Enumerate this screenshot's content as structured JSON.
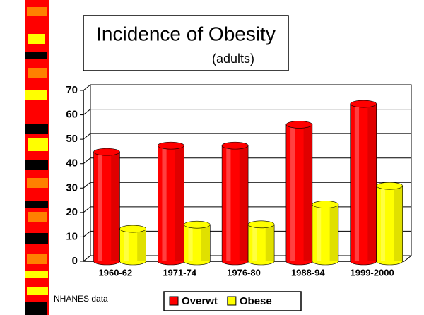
{
  "chart_data": {
    "type": "bar",
    "title": "Incidence of Obesity",
    "subtitle": "(adults)",
    "annotation": "NHANES data",
    "categories": [
      "1960-62",
      "1971-74",
      "1976-80",
      "1988-94",
      "1999-2000"
    ],
    "series": [
      {
        "name": "Overwt",
        "color": "#ff0000",
        "values": [
          44.8,
          47.4,
          47.4,
          56.0,
          64.5
        ]
      },
      {
        "name": "Obese",
        "color": "#ffff00",
        "values": [
          13.3,
          15.0,
          15.1,
          23.3,
          30.9
        ]
      }
    ],
    "ylim": [
      0,
      70
    ],
    "yticks": [
      0,
      10,
      20,
      30,
      40,
      50,
      60,
      70
    ],
    "grid": true,
    "legend": "bottom"
  }
}
